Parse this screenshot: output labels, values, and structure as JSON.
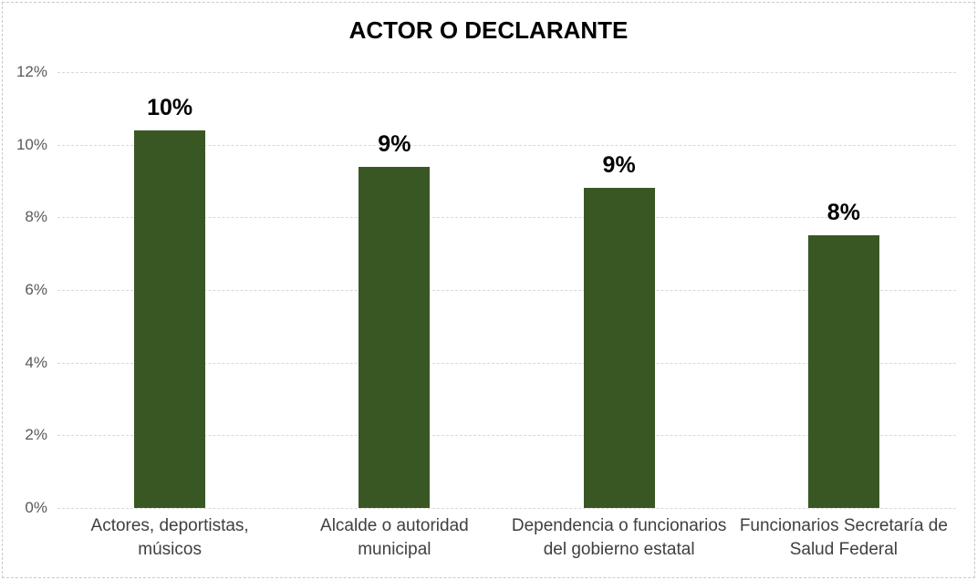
{
  "chart_data": {
    "type": "bar",
    "title": "ACTOR O DECLARANTE",
    "categories": [
      "Actores, deportistas,\nmúsicos",
      "Alcalde  o autoridad\nmunicipal",
      "Dependencia o funcionarios\ndel gobierno estatal",
      "Funcionarios Secretaría de\nSalud Federal"
    ],
    "values": [
      10.4,
      9.4,
      8.8,
      7.5
    ],
    "data_labels": [
      "10%",
      "9%",
      "9%",
      "8%"
    ],
    "y_ticks": [
      "0%",
      "2%",
      "4%",
      "6%",
      "8%",
      "10%",
      "12%"
    ],
    "y_tick_values": [
      0,
      2,
      4,
      6,
      8,
      10,
      12
    ],
    "ylim": [
      0,
      12
    ],
    "xlabel": "",
    "ylabel": "",
    "grid": true,
    "legend": false,
    "colors": {
      "bar": "#395723",
      "gridline": "#d9d9d9",
      "tick_label": "#595959",
      "category_label": "#404040",
      "title": "#000000",
      "data_label": "#000000",
      "background": "#ffffff",
      "border": "#c9c9c9"
    }
  }
}
